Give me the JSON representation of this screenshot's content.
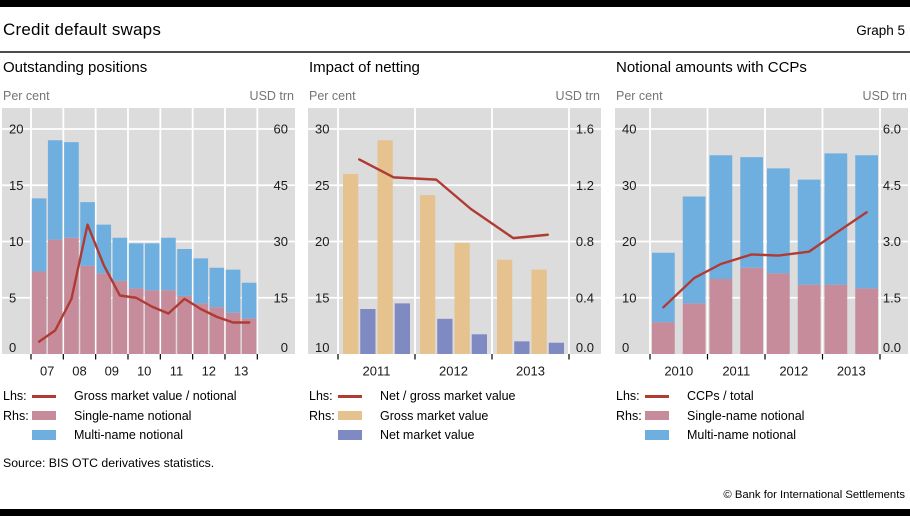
{
  "header": {
    "title": "Credit default swaps",
    "graph_label": "Graph 5"
  },
  "footer": {
    "source": "Source: BIS OTC derivatives statistics.",
    "copyright": "© Bank for International Settlements"
  },
  "colors": {
    "line_red": "#AF3B33",
    "single_name_rose": "#C68C9C",
    "multi_name_blue": "#6FAFE0",
    "gross_value_tan": "#E5C28E",
    "net_value_purple": "#7F8AC2",
    "plot_bg": "#DCDCDC",
    "grid": "#FFFFFF",
    "muted_text": "#757575",
    "rule_dark": "#4D4D4D"
  },
  "chart_data": [
    {
      "type": "bar",
      "bar_mode": "stacked",
      "title": "Outstanding positions",
      "left_axis": {
        "label": "Per cent",
        "min": 0,
        "max": 20,
        "ticks": [
          "20",
          "15",
          "10",
          "5",
          "0"
        ]
      },
      "right_axis": {
        "label": "USD trn",
        "min": 0,
        "max": 60,
        "ticks": [
          "60",
          "45",
          "30",
          "15",
          "0"
        ]
      },
      "x_tick_labels": [
        "07",
        "08",
        "09",
        "10",
        "11",
        "12",
        "13"
      ],
      "periods": [
        "2007 H1",
        "2007 H2",
        "2008 H1",
        "2008 H2",
        "2009 H1",
        "2009 H2",
        "2010 H1",
        "2010 H2",
        "2011 H1",
        "2011 H2",
        "2012 H1",
        "2012 H2",
        "2013 H1",
        "2013 H2"
      ],
      "legend": {
        "lhs": "Lhs:",
        "rhs": "Rhs:"
      },
      "series": [
        {
          "name": "Gross market value / notional",
          "type": "line",
          "axis": "left",
          "color": "#AF3B33",
          "values": [
            1.1,
            2.1,
            4.9,
            11.5,
            7.9,
            5.2,
            5.0,
            4.2,
            3.6,
            4.9,
            4.0,
            3.3,
            2.8,
            2.8
          ]
        },
        {
          "name": "Single-name notional",
          "type": "bar",
          "axis": "right",
          "color": "#C68C9C",
          "values": [
            22,
            30.5,
            31,
            23.5,
            21.5,
            19.5,
            17.5,
            17,
            17,
            15.5,
            13.5,
            12.5,
            11,
            9.5
          ]
        },
        {
          "name": "Multi-name notional",
          "type": "bar",
          "axis": "right",
          "color": "#6FAFE0",
          "values": [
            19.5,
            26.5,
            25.5,
            17,
            13,
            11.5,
            12,
            12.5,
            14,
            12.5,
            12,
            10.5,
            11.5,
            9.5
          ]
        }
      ]
    },
    {
      "type": "bar",
      "bar_mode": "grouped",
      "title": "Impact of netting",
      "left_axis": {
        "label": "Per cent",
        "min": 10,
        "max": 30,
        "ticks": [
          "30",
          "25",
          "20",
          "15",
          "10"
        ]
      },
      "right_axis": {
        "label": "USD trn",
        "min": 0,
        "max": 1.6,
        "ticks": [
          "1.6",
          "1.2",
          "0.8",
          "0.4",
          "0.0"
        ]
      },
      "x_tick_labels": [
        "2011",
        "2012",
        "2013"
      ],
      "periods": [
        "2011 H1",
        "2011 H2",
        "2012 H1",
        "2012 H2",
        "2013 H1",
        "2013 H2"
      ],
      "legend": {
        "lhs": "Lhs:",
        "rhs": "Rhs:"
      },
      "series": [
        {
          "name": "Net / gross market value",
          "type": "line",
          "axis": "left",
          "color": "#AF3B33",
          "values": [
            27.3,
            25.7,
            25.5,
            22.9,
            20.3,
            20.6
          ]
        },
        {
          "name": "Gross market value",
          "type": "bar",
          "axis": "right",
          "color": "#E5C28E",
          "values": [
            1.28,
            1.52,
            1.13,
            0.79,
            0.67,
            0.6
          ]
        },
        {
          "name": "Net market value",
          "type": "bar",
          "axis": "right",
          "color": "#7F8AC2",
          "values": [
            0.32,
            0.36,
            0.25,
            0.14,
            0.09,
            0.08
          ]
        }
      ]
    },
    {
      "type": "bar",
      "bar_mode": "stacked",
      "title": "Notional amounts with CCPs",
      "left_axis": {
        "label": "Per cent",
        "min": 0,
        "max": 40,
        "ticks": [
          "40",
          "30",
          "20",
          "10",
          "0"
        ]
      },
      "right_axis": {
        "label": "USD trn",
        "min": 0,
        "max": 6,
        "ticks": [
          "6.0",
          "4.5",
          "3.0",
          "1.5",
          "0.0"
        ]
      },
      "x_tick_labels": [
        "2010",
        "2011",
        "2012",
        "2013"
      ],
      "periods": [
        "2010 H1",
        "2010 H2",
        "2011 H1",
        "2011 H2",
        "2012 H1",
        "2012 H2",
        "2013 H1",
        "2013 H2"
      ],
      "legend": {
        "lhs": "Lhs:",
        "rhs": "Rhs:"
      },
      "series": [
        {
          "name": "CCPs / total",
          "type": "line",
          "axis": "left",
          "color": "#AF3B33",
          "values": [
            8.3,
            13.5,
            16.0,
            17.7,
            17.5,
            18.2,
            21.5,
            25.2
          ]
        },
        {
          "name": "Single-name notional",
          "type": "bar",
          "axis": "right",
          "color": "#C68C9C",
          "values": [
            0.85,
            1.35,
            2.0,
            2.3,
            2.15,
            1.85,
            1.85,
            1.75
          ]
        },
        {
          "name": "Multi-name notional",
          "type": "bar",
          "axis": "right",
          "color": "#6FAFE0",
          "values": [
            1.85,
            2.85,
            3.3,
            2.95,
            2.8,
            2.8,
            3.5,
            3.55
          ]
        }
      ]
    }
  ]
}
